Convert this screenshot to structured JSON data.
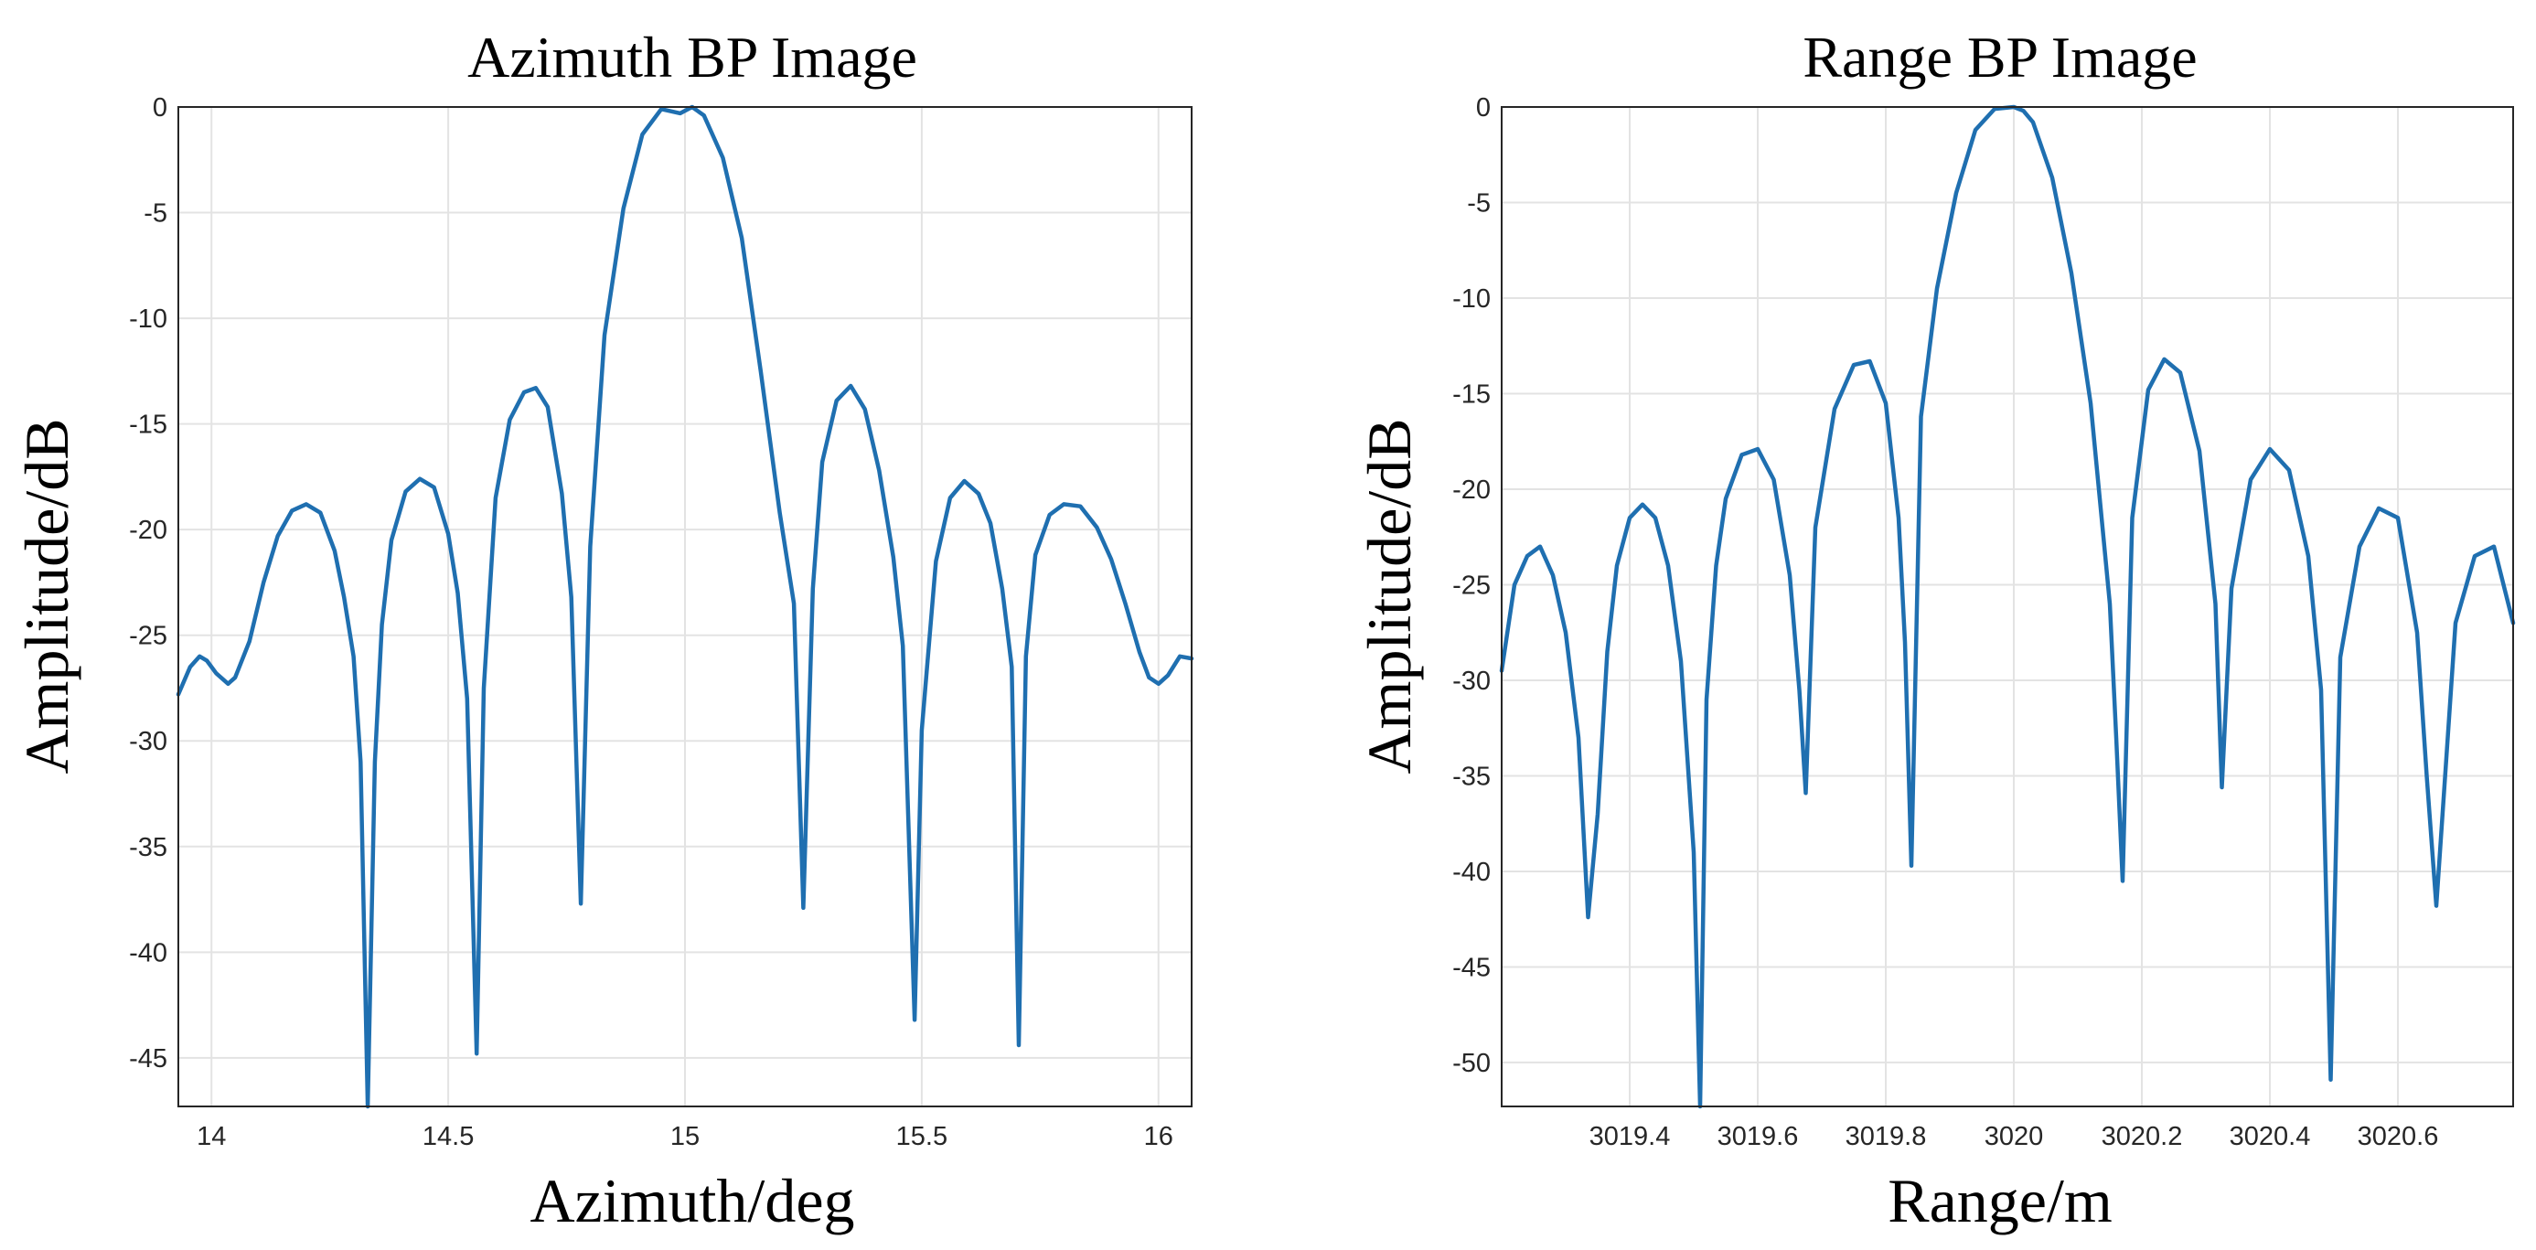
{
  "chart_data": [
    {
      "type": "line",
      "title": "Azimuth BP Image",
      "xlabel": "Azimuth/deg",
      "ylabel": "Amplitude/dB",
      "xlim": [
        13.93,
        16.07
      ],
      "ylim": [
        -47.3,
        0
      ],
      "grid": true,
      "color": "#1f6fb0",
      "xticks": [
        14,
        14.5,
        15,
        15.5,
        16
      ],
      "xtick_labels": [
        "14",
        "14.5",
        "15",
        "15.5",
        "16"
      ],
      "yticks": [
        0,
        -5,
        -10,
        -15,
        -20,
        -25,
        -30,
        -35,
        -40,
        -45
      ],
      "ytick_labels": [
        "0",
        "-5",
        "-10",
        "-15",
        "-20",
        "-25",
        "-30",
        "-35",
        "-40",
        "-45"
      ],
      "series": [
        {
          "name": "Azimuth BP",
          "x": [
            13.93,
            13.955,
            13.975,
            13.99,
            14.01,
            14.035,
            14.05,
            14.08,
            14.11,
            14.14,
            14.17,
            14.2,
            14.23,
            14.26,
            14.28,
            14.3,
            14.315,
            14.33,
            14.345,
            14.36,
            14.38,
            14.41,
            14.44,
            14.47,
            14.5,
            14.52,
            14.54,
            14.56,
            14.575,
            14.6,
            14.63,
            14.66,
            14.685,
            14.71,
            14.74,
            14.76,
            14.78,
            14.8,
            14.83,
            14.87,
            14.91,
            14.95,
            14.99,
            15.015,
            15.04,
            15.08,
            15.12,
            15.16,
            15.2,
            15.23,
            15.25,
            15.27,
            15.29,
            15.32,
            15.35,
            15.38,
            15.41,
            15.44,
            15.46,
            15.485,
            15.5,
            15.53,
            15.56,
            15.59,
            15.62,
            15.645,
            15.67,
            15.69,
            15.705,
            15.72,
            15.74,
            15.77,
            15.8,
            15.835,
            15.87,
            15.9,
            15.93,
            15.96,
            15.98,
            16.0,
            16.02,
            16.045,
            16.07
          ],
          "values": [
            -27.8,
            -26.5,
            -26.0,
            -26.2,
            -26.8,
            -27.3,
            -27.0,
            -25.3,
            -22.5,
            -20.3,
            -19.1,
            -18.8,
            -19.2,
            -21.0,
            -23.2,
            -26.0,
            -31.0,
            -47.3,
            -31.0,
            -24.5,
            -20.5,
            -18.2,
            -17.6,
            -18.0,
            -20.2,
            -23.0,
            -28.0,
            -44.8,
            -27.5,
            -18.5,
            -14.8,
            -13.5,
            -13.3,
            -14.2,
            -18.3,
            -23.2,
            -37.7,
            -20.8,
            -10.8,
            -4.8,
            -1.3,
            -0.1,
            -0.3,
            0.0,
            -0.4,
            -2.4,
            -6.2,
            -12.5,
            -19.2,
            -23.5,
            -37.9,
            -22.8,
            -16.8,
            -13.9,
            -13.2,
            -14.3,
            -17.2,
            -21.3,
            -25.5,
            -43.2,
            -29.5,
            -21.5,
            -18.5,
            -17.7,
            -18.3,
            -19.7,
            -22.8,
            -26.5,
            -44.4,
            -26.0,
            -21.2,
            -19.3,
            -18.8,
            -18.9,
            -19.9,
            -21.4,
            -23.5,
            -25.8,
            -27.0,
            -27.3,
            -26.9,
            -26.0,
            -26.1
          ]
        }
      ]
    },
    {
      "type": "line",
      "title": "Range BP Image",
      "xlabel": "Range/m",
      "ylabel": "Amplitude/dB",
      "xlim": [
        3019.2,
        3020.78
      ],
      "ylim": [
        -52.3,
        0
      ],
      "grid": true,
      "color": "#1f6fb0",
      "xticks": [
        3019.4,
        3019.6,
        3019.8,
        3020,
        3020.2,
        3020.4,
        3020.6
      ],
      "xtick_labels": [
        "3019.4",
        "3019.6",
        "3019.8",
        "3020",
        "3020.2",
        "3020.4",
        "3020.6"
      ],
      "yticks": [
        0,
        -5,
        -10,
        -15,
        -20,
        -25,
        -30,
        -35,
        -40,
        -45,
        -50
      ],
      "ytick_labels": [
        "0",
        "-5",
        "-10",
        "-15",
        "-20",
        "-25",
        "-30",
        "-35",
        "-40",
        "-45",
        "-50"
      ],
      "series": [
        {
          "name": "Range BP",
          "x": [
            3019.2,
            3019.22,
            3019.24,
            3019.26,
            3019.28,
            3019.3,
            3019.32,
            3019.335,
            3019.35,
            3019.365,
            3019.38,
            3019.4,
            3019.42,
            3019.44,
            3019.46,
            3019.48,
            3019.5,
            3019.51,
            3019.52,
            3019.535,
            3019.55,
            3019.575,
            3019.6,
            3019.625,
            3019.65,
            3019.665,
            3019.675,
            3019.69,
            3019.72,
            3019.75,
            3019.775,
            3019.8,
            3019.82,
            3019.83,
            3019.84,
            3019.855,
            3019.88,
            3019.91,
            3019.94,
            3019.97,
            3020.0,
            3020.015,
            3020.03,
            3020.06,
            3020.09,
            3020.12,
            3020.15,
            3020.16,
            3020.17,
            3020.185,
            3020.21,
            3020.235,
            3020.26,
            3020.29,
            3020.315,
            3020.325,
            3020.34,
            3020.37,
            3020.4,
            3020.43,
            3020.46,
            3020.48,
            3020.495,
            3020.51,
            3020.54,
            3020.57,
            3020.6,
            3020.63,
            3020.645,
            3020.66,
            3020.69,
            3020.72,
            3020.75,
            3020.78
          ],
          "values": [
            -29.5,
            -25.0,
            -23.5,
            -23.0,
            -24.5,
            -27.5,
            -33.0,
            -42.4,
            -37.0,
            -28.5,
            -24.0,
            -21.5,
            -20.8,
            -21.5,
            -24.0,
            -29.0,
            -39.0,
            -52.3,
            -31.0,
            -24.0,
            -20.5,
            -18.2,
            -17.9,
            -19.5,
            -24.5,
            -30.5,
            -35.9,
            -22.0,
            -15.8,
            -13.5,
            -13.3,
            -15.5,
            -21.5,
            -28.0,
            -39.7,
            -16.2,
            -9.5,
            -4.5,
            -1.2,
            -0.1,
            0.0,
            -0.2,
            -0.8,
            -3.7,
            -8.7,
            -15.5,
            -26.0,
            -33.0,
            -40.5,
            -21.5,
            -14.8,
            -13.2,
            -13.9,
            -18.0,
            -26.0,
            -35.6,
            -25.2,
            -19.5,
            -17.9,
            -19.0,
            -23.5,
            -30.5,
            -50.9,
            -28.8,
            -23.0,
            -21.0,
            -21.5,
            -27.5,
            -35.0,
            -41.8,
            -27.0,
            -23.5,
            -23.0,
            -27.0
          ]
        }
      ]
    }
  ]
}
